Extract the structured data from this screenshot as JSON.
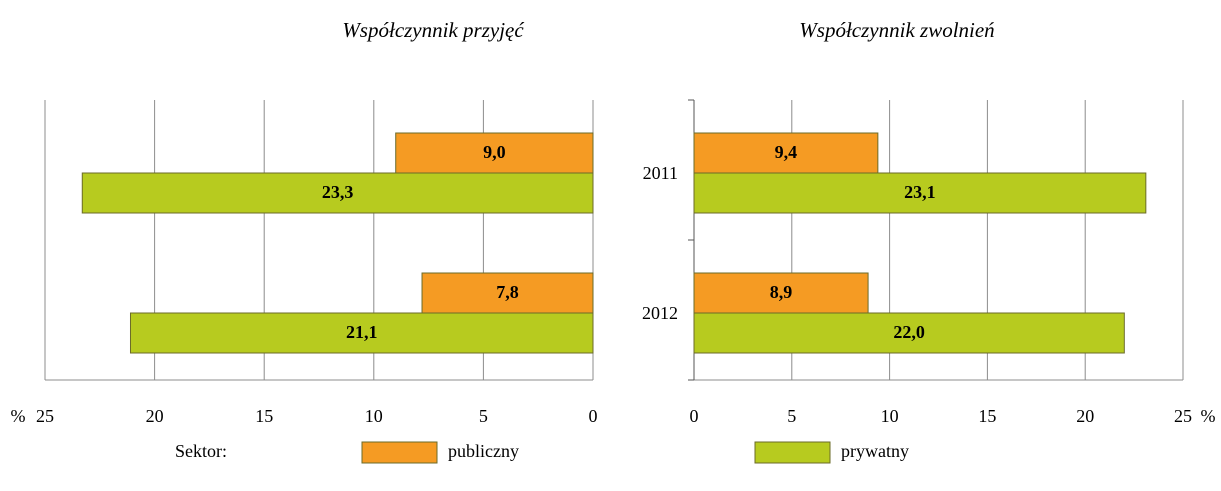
{
  "chart_data": [
    {
      "type": "barh",
      "title": "Współczynnik przyjęć",
      "xlabel": "%",
      "categories": [
        null,
        null
      ],
      "series": [
        {
          "name": "publiczny",
          "color": "#f59b23",
          "values": [
            9.0,
            7.8
          ],
          "value_labels": [
            "9,0",
            "7,8"
          ]
        },
        {
          "name": "prywatny",
          "color": "#b7cb1f",
          "values": [
            23.3,
            21.1
          ],
          "value_labels": [
            "23,3",
            "21,1"
          ]
        }
      ],
      "xlim": [
        25,
        0
      ],
      "xticks": [
        25,
        20,
        15,
        10,
        5,
        0
      ],
      "grid": true
    },
    {
      "type": "barh",
      "title": "Współczynnik zwolnień",
      "xlabel": "%",
      "categories": [
        "2011",
        "2012"
      ],
      "series": [
        {
          "name": "publiczny",
          "color": "#f59b23",
          "values": [
            9.4,
            8.9
          ],
          "value_labels": [
            "9,4",
            "8,9"
          ]
        },
        {
          "name": "prywatny",
          "color": "#b7cb1f",
          "values": [
            23.1,
            22.0
          ],
          "value_labels": [
            "23,1",
            "22,0"
          ]
        }
      ],
      "xlim": [
        0,
        25
      ],
      "xticks": [
        0,
        5,
        10,
        15,
        20,
        25
      ],
      "grid": true
    }
  ],
  "legend": {
    "title": "Sektor:"
  }
}
